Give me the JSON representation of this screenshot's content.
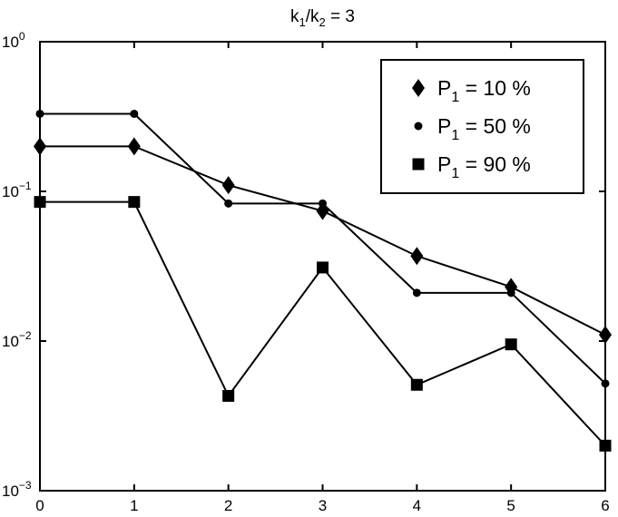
{
  "chart_data": {
    "type": "line",
    "title": "",
    "title_parts": {
      "k": "k",
      "sub1": "1",
      "slash": "/",
      "sub2": "2",
      "rest": " = 3"
    },
    "xlabel": "",
    "ylabel": "",
    "x": [
      0,
      1,
      2,
      3,
      4,
      5,
      6
    ],
    "xlim": [
      0,
      6
    ],
    "ylim": [
      0.001,
      1
    ],
    "yscale": "log",
    "grid": false,
    "legend_position": "top-right",
    "xticks": [
      "0",
      "1",
      "2",
      "3",
      "4",
      "5",
      "6"
    ],
    "yticks": [
      {
        "value": 1,
        "base": "10",
        "exp": "0"
      },
      {
        "value": 0.1,
        "base": "10",
        "exp": "−1"
      },
      {
        "value": 0.01,
        "base": "10",
        "exp": "−2"
      },
      {
        "value": 0.001,
        "base": "10",
        "exp": "−3"
      }
    ],
    "series": [
      {
        "name": "P1 = 10 %",
        "legend_parts": {
          "p": "P",
          "sub": "1",
          "rest": " = 10 %"
        },
        "marker": "diamond",
        "values": [
          0.2,
          0.2,
          0.11,
          0.074,
          0.037,
          0.023,
          0.011
        ]
      },
      {
        "name": "P1 = 50 %",
        "legend_parts": {
          "p": "P",
          "sub": "1",
          "rest": " = 50 %"
        },
        "marker": "circle",
        "values": [
          0.33,
          0.33,
          0.083,
          0.083,
          0.021,
          0.021,
          0.0052
        ]
      },
      {
        "name": "P1 = 90 %",
        "legend_parts": {
          "p": "P",
          "sub": "1",
          "rest": " = 90 %"
        },
        "marker": "square",
        "values": [
          0.085,
          0.085,
          0.0043,
          0.031,
          0.0051,
          0.0095,
          0.002
        ]
      }
    ]
  }
}
